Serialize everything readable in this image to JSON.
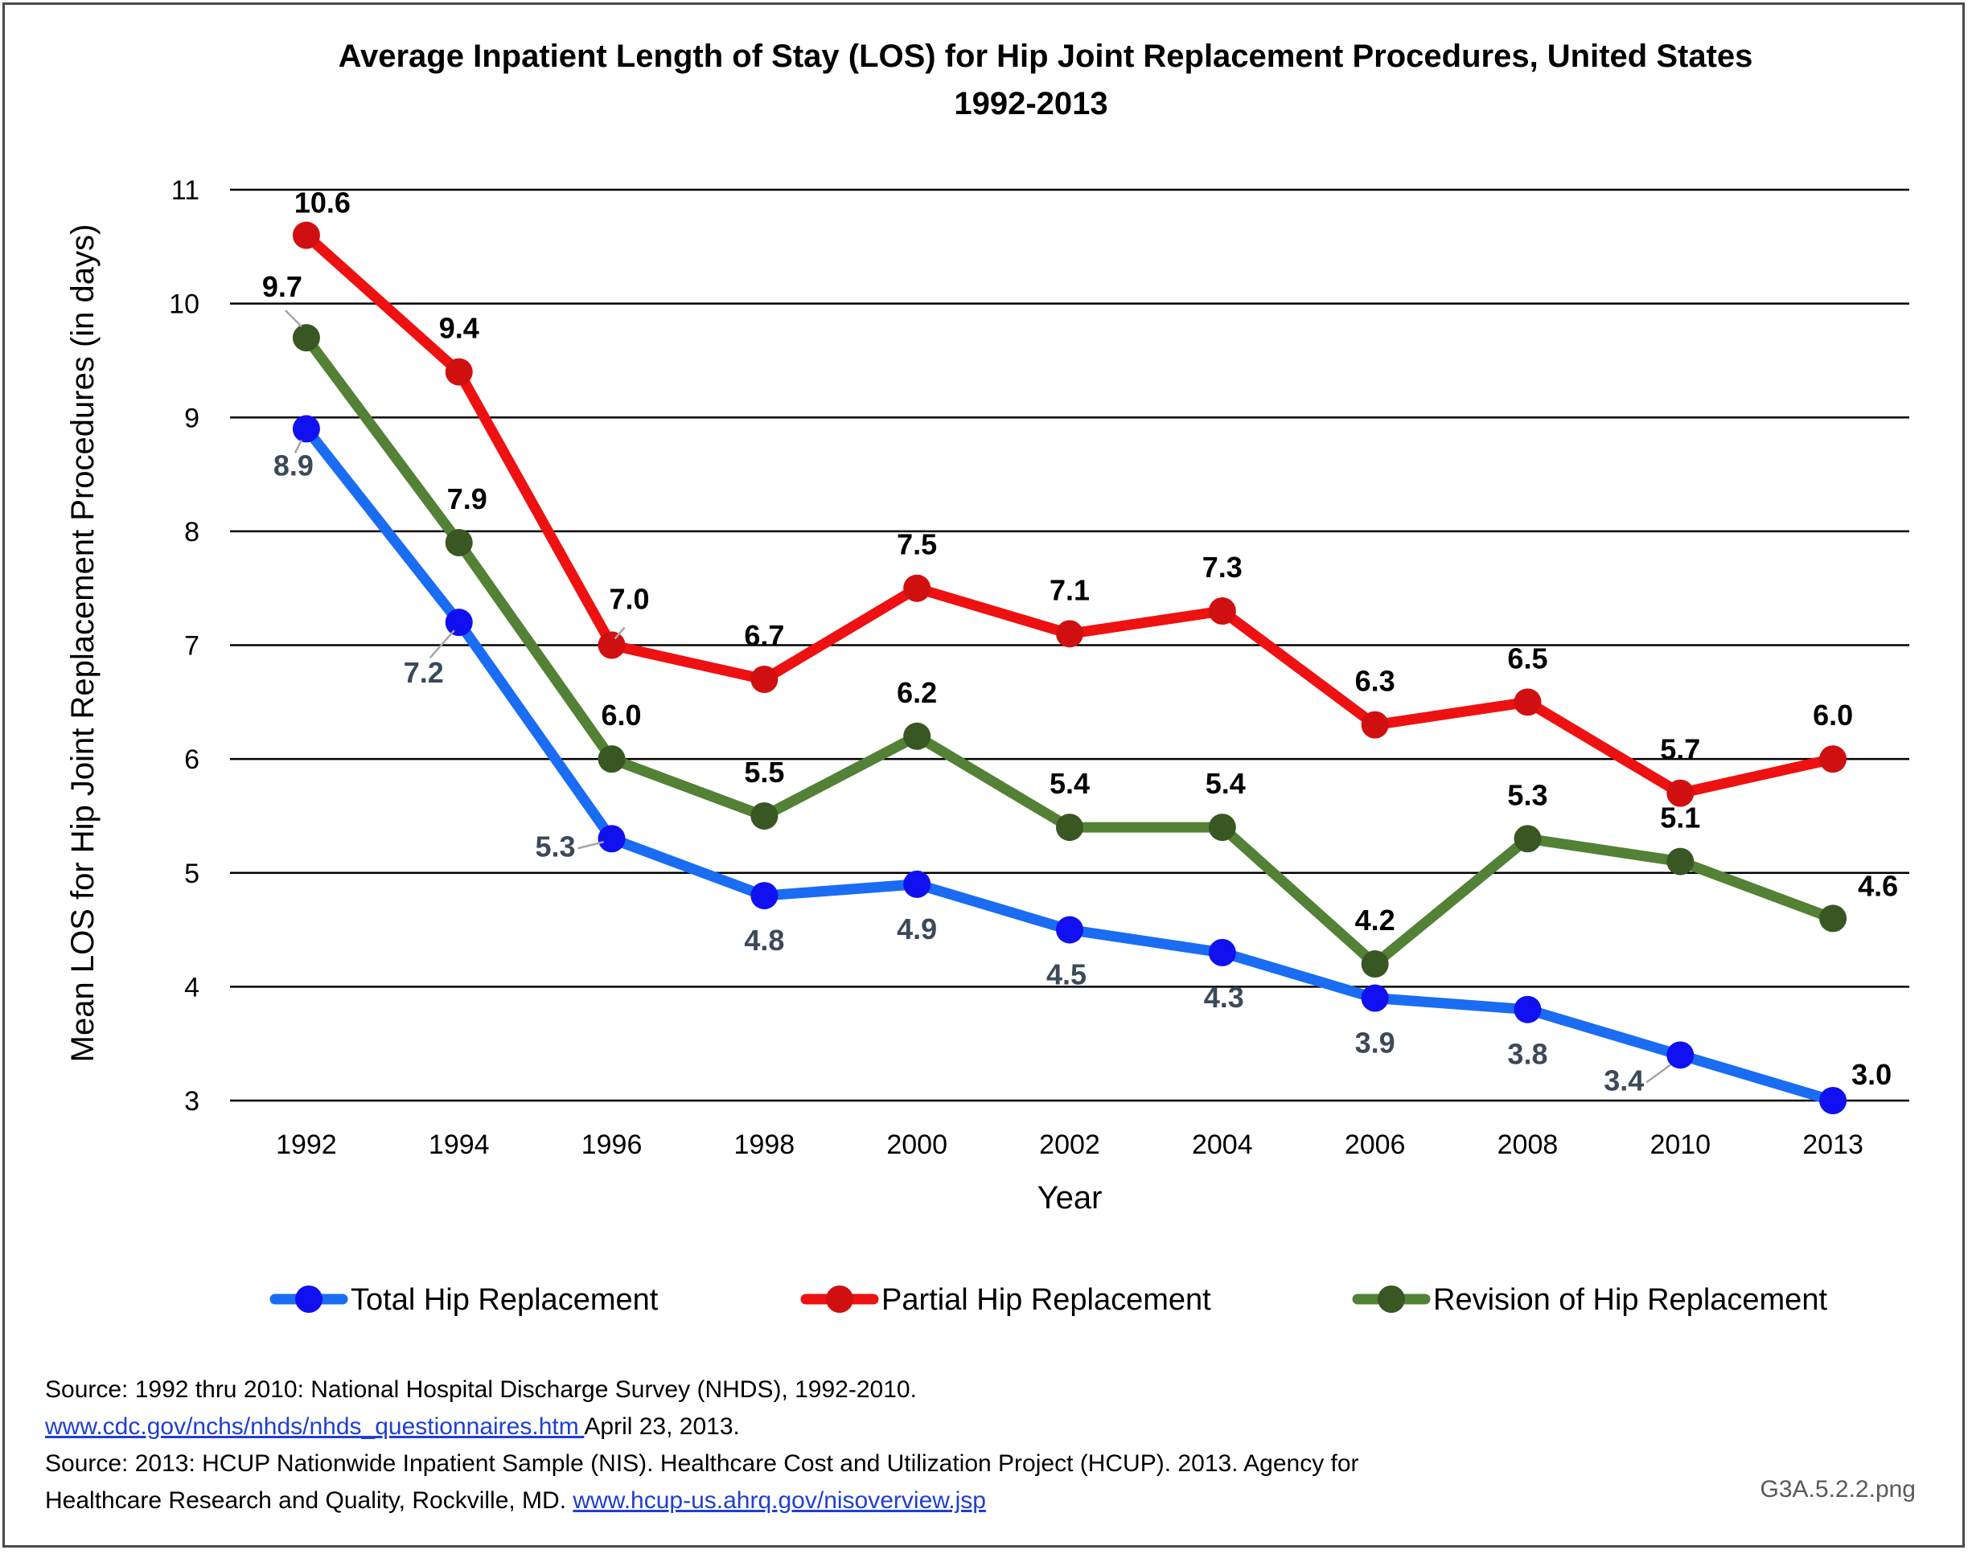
{
  "chart_data": {
    "type": "line",
    "title": [
      "Average Inpatient Length of Stay (LOS) for Hip Joint Replacement Procedures, United States",
      "1992-2013"
    ],
    "xlabel": "Year",
    "ylabel": "Mean LOS for Hip Joint Replacement Procedures (in days)",
    "categories": [
      "1992",
      "1994",
      "1996",
      "1998",
      "2000",
      "2002",
      "2004",
      "2006",
      "2008",
      "2010",
      "2013"
    ],
    "ylim": [
      3,
      11
    ],
    "yticks": [
      "3",
      "4",
      "5",
      "6",
      "7",
      "8",
      "9",
      "10",
      "11"
    ],
    "grid": true,
    "legend_position": "bottom",
    "series": [
      {
        "name": "Total Hip Replacement",
        "color": "#1a6cf2",
        "marker_color": "#1010f0",
        "values": [
          8.9,
          7.2,
          5.3,
          4.8,
          4.9,
          4.5,
          4.3,
          3.9,
          3.8,
          3.4,
          3.0
        ],
        "labels": [
          "8.9",
          "7.2",
          "5.3",
          "4.8",
          "4.9",
          "4.5",
          "4.3",
          "3.9",
          "3.8",
          "3.4",
          "3.0"
        ]
      },
      {
        "name": "Partial Hip Replacement",
        "color": "#ee1111",
        "marker_color": "#d01010",
        "values": [
          10.6,
          9.4,
          7.0,
          6.7,
          7.5,
          7.1,
          7.3,
          6.3,
          6.5,
          5.7,
          6.0
        ],
        "labels": [
          "10.6",
          "9.4",
          "7.0",
          "6.7",
          "7.5",
          "7.1",
          "7.3",
          "6.3",
          "6.5",
          "5.7",
          "6.0"
        ]
      },
      {
        "name": "Revision of Hip Replacement",
        "color": "#538135",
        "marker_color": "#385723",
        "values": [
          9.7,
          7.9,
          6.0,
          5.5,
          6.2,
          5.4,
          5.4,
          4.2,
          5.3,
          5.1,
          4.6
        ],
        "labels": [
          "9.7",
          "7.9",
          "6.0",
          "5.5",
          "6.2",
          "5.4",
          "5.4",
          "4.2",
          "5.3",
          "5.1",
          "4.6"
        ]
      }
    ]
  },
  "source": {
    "line1": "Source: 1992 thru 2010: National Hospital Discharge Survey (NHDS), 1992-2010.",
    "link1": "www.cdc.gov/nchs/nhds/nhds_questionnaires.htm ",
    "line2_tail": "April 23, 2013.",
    "line3": "Source: 2013: HCUP Nationwide Inpatient Sample (NIS). Healthcare Cost and Utilization Project (HCUP). 2013. Agency for",
    "line4": "Healthcare Research and Quality, Rockville, MD. ",
    "link2": "www.hcup-us.ahrq.gov/nisoverview.jsp"
  },
  "filename": "G3A.5.2.2.png"
}
